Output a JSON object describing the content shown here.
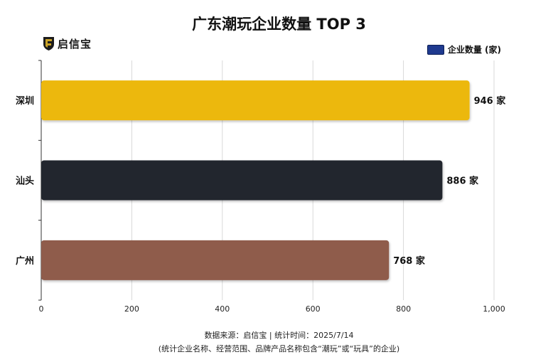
{
  "logo": {
    "text": "启信宝",
    "shield_color": "#c9a227",
    "shield_bg": "#1c1c1c"
  },
  "legend": {
    "label": "企业数量 (家)",
    "color": "#1f3a8f"
  },
  "footer": {
    "line1": "数据来源：启信宝 | 统计时间：2025/7/14",
    "line2": "(统计企业名称、经营范围、品牌产品名称包含“潮玩”或“玩具”的企业)"
  },
  "chart_data": {
    "type": "bar",
    "orientation": "horizontal",
    "title": "广东潮玩企业数量 TOP 3",
    "categories": [
      "深圳",
      "汕头",
      "广州"
    ],
    "series": [
      {
        "name": "企业数量 (家)",
        "values": [
          946,
          886,
          768
        ]
      }
    ],
    "value_labels": [
      "946 家",
      "886 家",
      "768 家"
    ],
    "bar_colors": [
      "#ecb80e",
      "#24272d",
      "#8f5c4c"
    ],
    "xlim": [
      0,
      1000
    ],
    "xticks": [
      0,
      200,
      400,
      600,
      800,
      1000
    ],
    "xtick_labels": [
      "0",
      "200",
      "400",
      "600",
      "800",
      "1,000"
    ],
    "grid": true,
    "legend_position": "top-right"
  }
}
